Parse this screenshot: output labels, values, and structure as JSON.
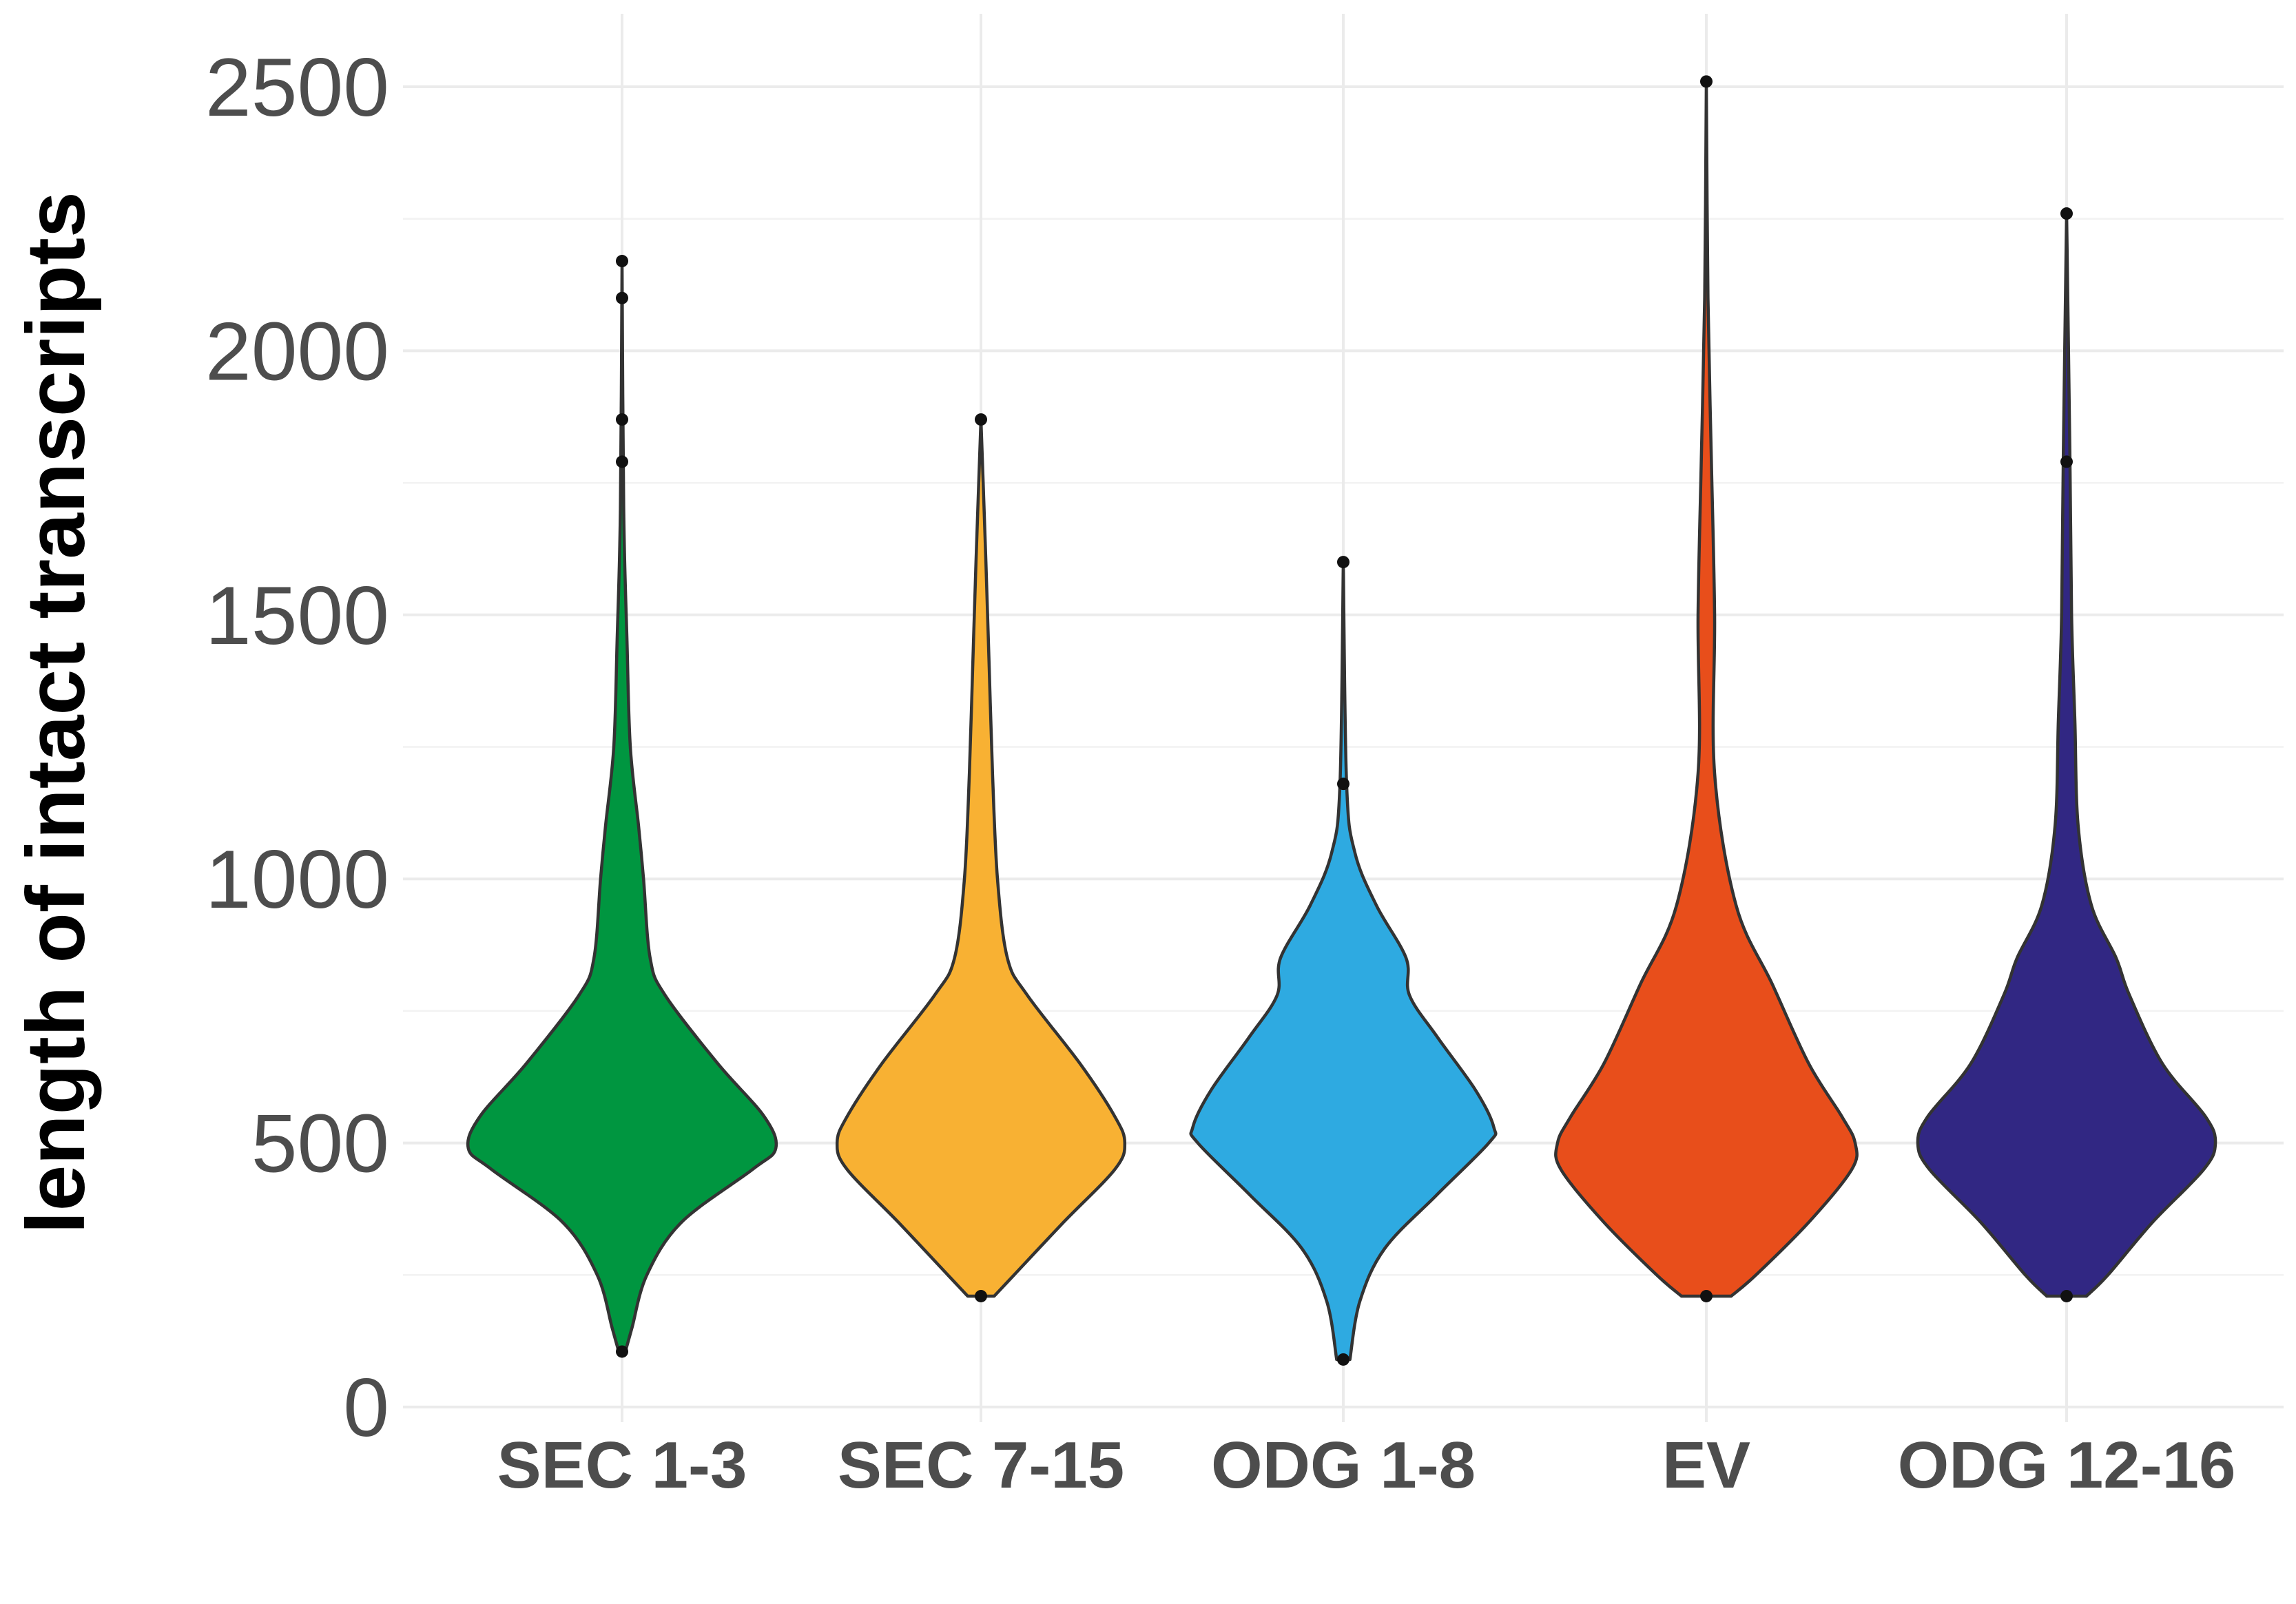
{
  "chart_data": {
    "type": "violin",
    "title": "",
    "xlabel": "",
    "ylabel": "length of intact transcripts",
    "ylim": [
      0,
      2500
    ],
    "yticks": [
      0,
      500,
      1000,
      1500,
      2000,
      2500
    ],
    "grid": true,
    "legend": "none",
    "categories": [
      "SEC 1-3",
      "SEC 7-15",
      "ODG 1-8",
      "EV",
      "ODG 12-16"
    ],
    "series": [
      {
        "category": "SEC 1-3",
        "color": "#009640",
        "min": 105,
        "max": 2170,
        "outliers": [
          2170,
          2100,
          1870,
          1790,
          105
        ],
        "density": [
          [
            105,
            0.02
          ],
          [
            150,
            0.06
          ],
          [
            250,
            0.15
          ],
          [
            350,
            0.36
          ],
          [
            450,
            0.79
          ],
          [
            490,
            0.93
          ],
          [
            550,
            0.86
          ],
          [
            650,
            0.58
          ],
          [
            780,
            0.26
          ],
          [
            850,
            0.17
          ],
          [
            1000,
            0.13
          ],
          [
            1100,
            0.1
          ],
          [
            1250,
            0.05
          ],
          [
            1450,
            0.03
          ],
          [
            1700,
            0.01
          ],
          [
            2170,
            0.0
          ]
        ]
      },
      {
        "category": "SEC 7-15",
        "color": "#F8B133",
        "min": 210,
        "max": 1870,
        "outliers": [
          1870,
          210
        ],
        "density": [
          [
            210,
            0.08
          ],
          [
            250,
            0.2
          ],
          [
            350,
            0.5
          ],
          [
            450,
            0.81
          ],
          [
            500,
            0.87
          ],
          [
            550,
            0.81
          ],
          [
            650,
            0.6
          ],
          [
            780,
            0.28
          ],
          [
            850,
            0.16
          ],
          [
            1000,
            0.1
          ],
          [
            1200,
            0.07
          ],
          [
            1400,
            0.05
          ],
          [
            1600,
            0.03
          ],
          [
            1870,
            0.0
          ]
        ]
      },
      {
        "category": "ODG 1-8",
        "color": "#2EAAE1",
        "min": 90,
        "max": 1600,
        "outliers": [
          1600,
          1180,
          90
        ],
        "density": [
          [
            90,
            0.04
          ],
          [
            200,
            0.1
          ],
          [
            300,
            0.25
          ],
          [
            400,
            0.56
          ],
          [
            500,
            0.88
          ],
          [
            530,
            0.91
          ],
          [
            600,
            0.8
          ],
          [
            700,
            0.57
          ],
          [
            780,
            0.4
          ],
          [
            850,
            0.38
          ],
          [
            950,
            0.2
          ],
          [
            1050,
            0.07
          ],
          [
            1180,
            0.02
          ],
          [
            1600,
            0.0
          ]
        ]
      },
      {
        "category": "EV",
        "color": "#E84E1B",
        "min": 210,
        "max": 2510,
        "outliers": [
          2510,
          210
        ],
        "density": [
          [
            210,
            0.15
          ],
          [
            250,
            0.3
          ],
          [
            350,
            0.62
          ],
          [
            450,
            0.88
          ],
          [
            500,
            0.9
          ],
          [
            550,
            0.82
          ],
          [
            650,
            0.62
          ],
          [
            800,
            0.4
          ],
          [
            950,
            0.18
          ],
          [
            1200,
            0.05
          ],
          [
            1500,
            0.05
          ],
          [
            1800,
            0.03
          ],
          [
            2100,
            0.01
          ],
          [
            2510,
            0.0
          ]
        ]
      },
      {
        "category": "ODG 12-16",
        "color": "#312783",
        "min": 210,
        "max": 2260,
        "outliers": [
          2260,
          1790,
          210
        ],
        "density": [
          [
            210,
            0.12
          ],
          [
            250,
            0.25
          ],
          [
            350,
            0.52
          ],
          [
            450,
            0.83
          ],
          [
            500,
            0.9
          ],
          [
            550,
            0.84
          ],
          [
            650,
            0.58
          ],
          [
            780,
            0.38
          ],
          [
            850,
            0.3
          ],
          [
            950,
            0.15
          ],
          [
            1100,
            0.07
          ],
          [
            1300,
            0.05
          ],
          [
            1500,
            0.03
          ],
          [
            1800,
            0.02
          ],
          [
            2260,
            0.0
          ]
        ]
      }
    ]
  }
}
